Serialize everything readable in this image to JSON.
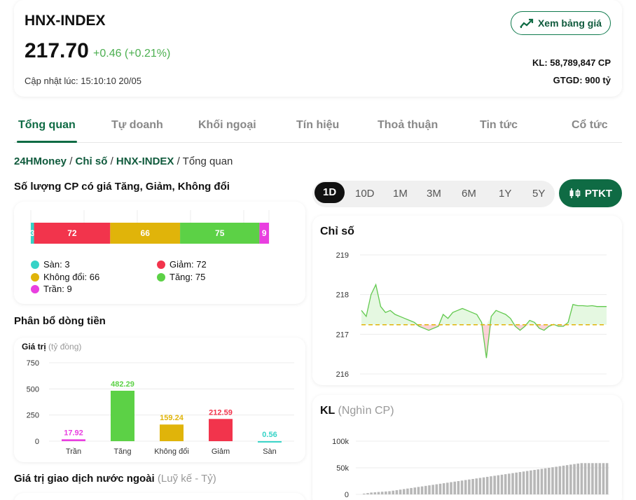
{
  "header": {
    "index_name": "HNX-INDEX",
    "price": "217.70",
    "change": "+0.46 (+0.21%)",
    "updated": "Cập nhật lúc: 15:10:10 20/05",
    "price_board_button": "Xem bảng giá",
    "volume": "KL: 58,789,847 CP",
    "value": "GTGD: 900 tỷ"
  },
  "tabs": [
    "Tổng quan",
    "Tự doanh",
    "Khối ngoại",
    "Tín hiệu",
    "Thoả thuận",
    "Tin tức",
    "Cổ tức"
  ],
  "breadcrumb": {
    "root": "24HMoney",
    "section": "Chỉ số",
    "index": "HNX-INDEX",
    "sep": "/",
    "current": "Tổng quan"
  },
  "stock_count": {
    "title": "Số lượng CP có giá Tăng, Giảm, Không đổi",
    "segments": [
      {
        "name": "Sàn",
        "value": 3,
        "color": "#35d3c7"
      },
      {
        "name": "Giảm",
        "value": 72,
        "color": "#f2344c"
      },
      {
        "name": "Không đổi",
        "value": 66,
        "color": "#e0b40a"
      },
      {
        "name": "Tăng",
        "value": 75,
        "color": "#5cd146"
      },
      {
        "name": "Trần",
        "value": 9,
        "color": "#e93fe0"
      }
    ],
    "legend": [
      "Sàn: 3",
      "Giảm: 72",
      "Không đổi: 66",
      "Tăng: 75",
      "Trần: 9"
    ]
  },
  "money_flow": {
    "title": "Phân bổ dòng tiền",
    "axis_title": "Giá trị",
    "axis_unit": "(tỷ đồng)",
    "chart_data": {
      "type": "bar",
      "categories": [
        "Trần",
        "Tăng",
        "Không đổi",
        "Giảm",
        "Sàn"
      ],
      "values": [
        17.92,
        482.29,
        159.24,
        212.59,
        0.56
      ],
      "value_labels": [
        "17.92",
        "482.29",
        "159.24",
        "212.59",
        "0.56"
      ],
      "colors": [
        "#e93fe0",
        "#5cd146",
        "#e0b40a",
        "#f2344c",
        "#35d3c7"
      ],
      "yticks": [
        "750",
        "500",
        "250",
        "0"
      ],
      "ylim": [
        0,
        750
      ]
    }
  },
  "foreign_title": "Giá trị giao dịch nước ngoài",
  "foreign_sub": "(Luỹ kế - Tỷ)",
  "periods": [
    "1D",
    "10D",
    "1M",
    "3M",
    "6M",
    "1Y",
    "5Y"
  ],
  "ptkt_button": "PTKT",
  "index_chart": {
    "title": "Chỉ số",
    "chart_data": {
      "type": "line",
      "yticks": [
        "219",
        "218",
        "217",
        "216"
      ],
      "ylim": [
        216,
        219
      ],
      "reference": 217.24,
      "values": [
        217.6,
        217.45,
        218.0,
        218.25,
        217.7,
        217.55,
        217.6,
        217.5,
        217.45,
        217.4,
        217.35,
        217.3,
        217.2,
        217.15,
        217.1,
        217.15,
        217.2,
        217.5,
        217.4,
        217.55,
        217.6,
        217.65,
        217.6,
        217.55,
        217.5,
        217.3,
        216.4,
        217.45,
        217.6,
        217.55,
        217.5,
        217.4,
        217.2,
        217.1,
        217.2,
        217.35,
        217.3,
        217.15,
        217.1,
        217.2,
        217.25,
        217.2,
        217.2,
        217.3,
        217.75,
        217.72,
        217.72,
        217.71,
        217.72,
        217.7,
        217.7,
        217.7
      ]
    }
  },
  "volume_chart": {
    "title": "KL",
    "unit": "(Nghìn CP)",
    "chart_data": {
      "type": "bar",
      "yticks": [
        "100k",
        "50k",
        "0"
      ],
      "ylim": [
        0,
        100000
      ],
      "values": [
        1500,
        2500,
        3500,
        4000,
        4500,
        5000,
        5500,
        6000,
        7000,
        8000,
        9000,
        10000,
        11000,
        12000,
        13000,
        14000,
        15000,
        16000,
        17000,
        18000,
        19000,
        20000,
        21000,
        22000,
        23000,
        24000,
        25000,
        26000,
        27000,
        28000,
        29000,
        30000,
        31000,
        32000,
        33000,
        34000,
        35000,
        36000,
        37000,
        38000,
        39000,
        40000,
        41000,
        42000,
        43000,
        44000,
        45000,
        46000,
        47000,
        48000,
        49000,
        50000,
        51000,
        52000,
        53000,
        54000,
        55000,
        56000,
        57000,
        58000,
        58800,
        58800,
        58800,
        58800,
        58800,
        58800,
        58800,
        58800
      ]
    }
  }
}
